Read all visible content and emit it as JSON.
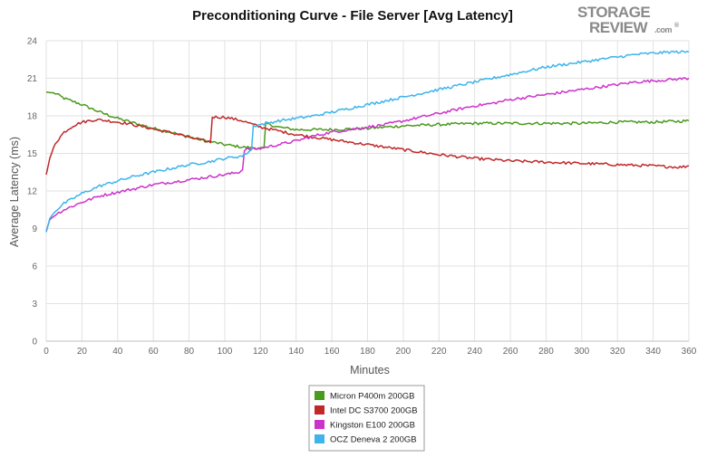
{
  "chart_data": {
    "type": "line",
    "title": "Preconditioning Curve - File Server [Avg Latency]",
    "xlabel": "Minutes",
    "ylabel": "Average Latency (ms)",
    "xlim": [
      0,
      360
    ],
    "ylim": [
      0,
      24
    ],
    "xticks": [
      0,
      20,
      40,
      60,
      80,
      100,
      120,
      140,
      160,
      180,
      200,
      220,
      240,
      260,
      280,
      300,
      320,
      340,
      360
    ],
    "yticks": [
      0,
      3,
      6,
      9,
      12,
      15,
      18,
      21,
      24
    ],
    "grid": true,
    "legend_position": "bottom-center",
    "series": [
      {
        "name": "Micron P400m 200GB",
        "color": "#4a9a1b",
        "points": [
          [
            0,
            19.9
          ],
          [
            5,
            19.8
          ],
          [
            10,
            19.4
          ],
          [
            20,
            18.9
          ],
          [
            30,
            18.3
          ],
          [
            40,
            17.8
          ],
          [
            50,
            17.4
          ],
          [
            60,
            17.0
          ],
          [
            70,
            16.7
          ],
          [
            80,
            16.3
          ],
          [
            90,
            16.0
          ],
          [
            100,
            15.7
          ],
          [
            110,
            15.5
          ],
          [
            122,
            15.4
          ],
          [
            123,
            17.4
          ],
          [
            130,
            17.1
          ],
          [
            140,
            16.9
          ],
          [
            160,
            16.9
          ],
          [
            180,
            17.0
          ],
          [
            200,
            17.2
          ],
          [
            220,
            17.3
          ],
          [
            240,
            17.4
          ],
          [
            260,
            17.4
          ],
          [
            280,
            17.4
          ],
          [
            300,
            17.4
          ],
          [
            320,
            17.5
          ],
          [
            340,
            17.5
          ],
          [
            360,
            17.6
          ]
        ]
      },
      {
        "name": "Intel DC S3700 200GB",
        "color": "#c0282a",
        "points": [
          [
            0,
            13.3
          ],
          [
            2,
            14.6
          ],
          [
            5,
            15.8
          ],
          [
            10,
            16.7
          ],
          [
            15,
            17.2
          ],
          [
            20,
            17.5
          ],
          [
            28,
            17.7
          ],
          [
            35,
            17.6
          ],
          [
            45,
            17.4
          ],
          [
            55,
            17.1
          ],
          [
            65,
            16.8
          ],
          [
            75,
            16.5
          ],
          [
            85,
            16.1
          ],
          [
            92,
            15.9
          ],
          [
            93,
            17.9
          ],
          [
            100,
            17.9
          ],
          [
            110,
            17.6
          ],
          [
            120,
            17.1
          ],
          [
            130,
            16.8
          ],
          [
            140,
            16.5
          ],
          [
            160,
            16.1
          ],
          [
            180,
            15.7
          ],
          [
            200,
            15.3
          ],
          [
            220,
            14.9
          ],
          [
            240,
            14.6
          ],
          [
            260,
            14.4
          ],
          [
            280,
            14.3
          ],
          [
            300,
            14.2
          ],
          [
            320,
            14.1
          ],
          [
            340,
            14.0
          ],
          [
            355,
            13.9
          ],
          [
            360,
            14.0
          ]
        ]
      },
      {
        "name": "Kingston E100 200GB",
        "color": "#cc33cc",
        "points": [
          [
            0,
            8.8
          ],
          [
            2,
            9.7
          ],
          [
            5,
            10.1
          ],
          [
            10,
            10.5
          ],
          [
            20,
            11.1
          ],
          [
            30,
            11.6
          ],
          [
            40,
            11.9
          ],
          [
            50,
            12.2
          ],
          [
            60,
            12.5
          ],
          [
            70,
            12.7
          ],
          [
            80,
            12.9
          ],
          [
            90,
            13.1
          ],
          [
            100,
            13.3
          ],
          [
            108,
            13.5
          ],
          [
            110,
            13.7
          ],
          [
            111,
            15.3
          ],
          [
            120,
            15.4
          ],
          [
            130,
            15.7
          ],
          [
            140,
            16.0
          ],
          [
            150,
            16.4
          ],
          [
            160,
            16.7
          ],
          [
            170,
            16.9
          ],
          [
            180,
            17.1
          ],
          [
            190,
            17.3
          ],
          [
            200,
            17.6
          ],
          [
            210,
            17.9
          ],
          [
            220,
            18.2
          ],
          [
            230,
            18.5
          ],
          [
            240,
            18.8
          ],
          [
            250,
            19.0
          ],
          [
            260,
            19.3
          ],
          [
            270,
            19.5
          ],
          [
            280,
            19.7
          ],
          [
            290,
            19.9
          ],
          [
            300,
            20.1
          ],
          [
            310,
            20.3
          ],
          [
            320,
            20.5
          ],
          [
            330,
            20.7
          ],
          [
            340,
            20.8
          ],
          [
            350,
            20.9
          ],
          [
            360,
            21.0
          ]
        ]
      },
      {
        "name": "OCZ Deneva 2 200GB",
        "color": "#3db4ec",
        "points": [
          [
            0,
            8.7
          ],
          [
            2,
            9.8
          ],
          [
            5,
            10.4
          ],
          [
            10,
            11.0
          ],
          [
            20,
            11.8
          ],
          [
            30,
            12.4
          ],
          [
            40,
            12.8
          ],
          [
            50,
            13.2
          ],
          [
            60,
            13.5
          ],
          [
            70,
            13.8
          ],
          [
            80,
            14.1
          ],
          [
            90,
            14.3
          ],
          [
            100,
            14.6
          ],
          [
            110,
            14.8
          ],
          [
            112,
            15.0
          ],
          [
            115,
            15.3
          ],
          [
            116,
            17.2
          ],
          [
            120,
            17.3
          ],
          [
            130,
            17.6
          ],
          [
            140,
            17.8
          ],
          [
            150,
            18.0
          ],
          [
            160,
            18.3
          ],
          [
            170,
            18.6
          ],
          [
            180,
            18.9
          ],
          [
            190,
            19.2
          ],
          [
            200,
            19.5
          ],
          [
            210,
            19.8
          ],
          [
            220,
            20.1
          ],
          [
            230,
            20.4
          ],
          [
            240,
            20.7
          ],
          [
            250,
            21.0
          ],
          [
            260,
            21.3
          ],
          [
            270,
            21.6
          ],
          [
            280,
            21.9
          ],
          [
            290,
            22.1
          ],
          [
            300,
            22.3
          ],
          [
            310,
            22.5
          ],
          [
            320,
            22.7
          ],
          [
            330,
            22.9
          ],
          [
            340,
            23.0
          ],
          [
            350,
            23.1
          ],
          [
            360,
            23.1
          ]
        ]
      }
    ]
  },
  "logo": {
    "line1": "STORAGE",
    "line2": "REVIEW",
    "suffix": ".com",
    "mark": "®"
  }
}
